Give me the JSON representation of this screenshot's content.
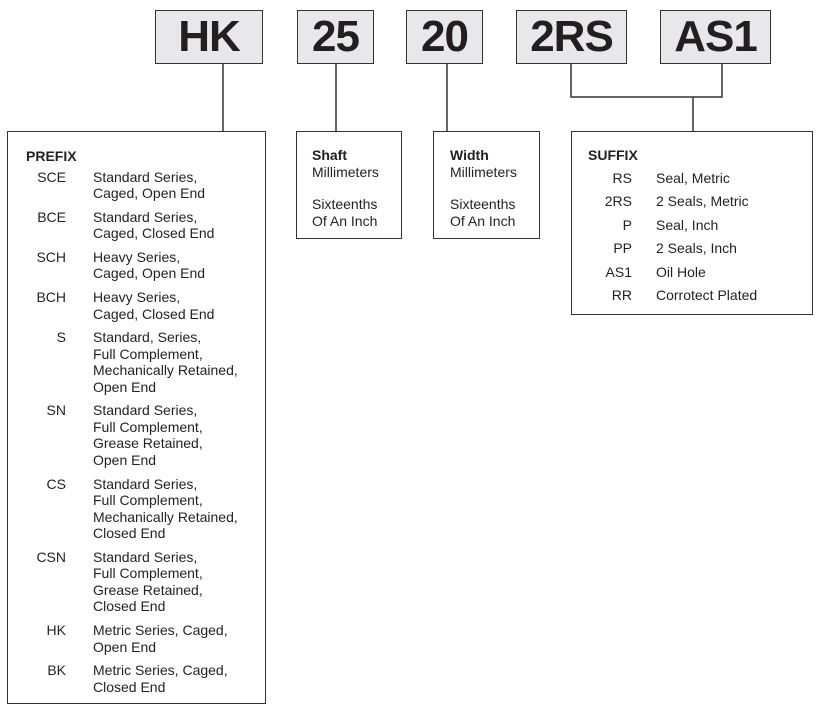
{
  "codes": {
    "prefix": "HK",
    "shaft": "25",
    "width": "20",
    "seal": "2RS",
    "option": "AS1"
  },
  "prefix": {
    "title": "PREFIX",
    "items": [
      {
        "code": "SCE",
        "desc": [
          "Standard Series,",
          "Caged, Open End"
        ]
      },
      {
        "code": "BCE",
        "desc": [
          "Standard Series,",
          "Caged, Closed End"
        ]
      },
      {
        "code": "SCH",
        "desc": [
          "Heavy Series,",
          "Caged, Open End"
        ]
      },
      {
        "code": "BCH",
        "desc": [
          "Heavy Series,",
          "Caged, Closed End"
        ]
      },
      {
        "code": "S",
        "desc": [
          "Standard, Series,",
          "Full Complement,",
          "Mechanically Retained,",
          "Open End"
        ]
      },
      {
        "code": "SN",
        "desc": [
          "Standard Series,",
          "Full Complement,",
          "Grease Retained,",
          "Open End"
        ]
      },
      {
        "code": "CS",
        "desc": [
          "Standard Series,",
          "Full Complement,",
          "Mechanically Retained,",
          "Closed End"
        ]
      },
      {
        "code": "CSN",
        "desc": [
          "Standard Series,",
          "Full Complement,",
          "Grease Retained,",
          "Closed End"
        ]
      },
      {
        "code": "HK",
        "desc": [
          "Metric Series, Caged,",
          "Open End"
        ]
      },
      {
        "code": "BK",
        "desc": [
          "Metric Series, Caged,",
          "Closed End"
        ]
      }
    ]
  },
  "shaft": {
    "title": "Shaft",
    "line1": "Millimeters",
    "line2": "Sixteenths",
    "line3": "Of An Inch"
  },
  "width": {
    "title": "Width",
    "line1": "Millimeters",
    "line2": "Sixteenths",
    "line3": "Of An Inch"
  },
  "suffix": {
    "title": "SUFFIX",
    "items": [
      {
        "code": "RS",
        "desc": "Seal, Metric"
      },
      {
        "code": "2RS",
        "desc": "2 Seals, Metric"
      },
      {
        "code": "P",
        "desc": "Seal, Inch"
      },
      {
        "code": "PP",
        "desc": "2 Seals, Inch"
      },
      {
        "code": "AS1",
        "desc": "Oil Hole"
      },
      {
        "code": "RR",
        "desc": "Corrotect Plated"
      }
    ]
  }
}
